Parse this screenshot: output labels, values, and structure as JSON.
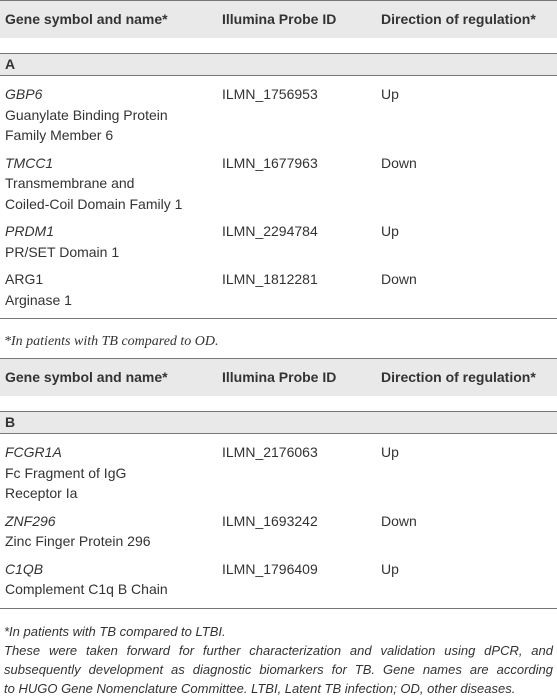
{
  "tables": [
    {
      "header": [
        "Gene symbol and name*",
        "Illumina Probe ID",
        "Direction of regulation*"
      ],
      "section": "A",
      "rows": [
        {
          "symbol": "GBP6",
          "symbol_italic": true,
          "name": [
            "Guanylate Binding Protein",
            "Family Member 6"
          ],
          "probe": "ILMN_1756953",
          "direction": "Up"
        },
        {
          "symbol": "TMCC1",
          "symbol_italic": true,
          "name": [
            "Transmembrane and",
            "Coiled-Coil Domain Family 1"
          ],
          "probe": "ILMN_1677963",
          "direction": "Down"
        },
        {
          "symbol": "PRDM1",
          "symbol_italic": true,
          "name": [
            "PR/SET Domain 1"
          ],
          "probe": "ILMN_2294784",
          "direction": "Up"
        },
        {
          "symbol": "ARG1",
          "symbol_italic": false,
          "name": [
            "Arginase 1"
          ],
          "probe": "ILMN_1812281",
          "direction": "Down"
        }
      ],
      "footnote": [
        "*In patients with TB compared to OD."
      ]
    },
    {
      "header": [
        "Gene symbol and name*",
        "Illumina Probe ID",
        "Direction of regulation*"
      ],
      "section": "B",
      "rows": [
        {
          "symbol": "FCGR1A",
          "symbol_italic": true,
          "name": [
            "Fc Fragment of IgG",
            "Receptor Ia"
          ],
          "probe": "ILMN_2176063",
          "direction": "Up"
        },
        {
          "symbol": "ZNF296",
          "symbol_italic": true,
          "name": [
            "Zinc Finger Protein 296"
          ],
          "probe": "ILMN_1693242",
          "direction": "Down"
        },
        {
          "symbol": "C1QB",
          "symbol_italic": true,
          "name": [
            "Complement C1q B Chain"
          ],
          "probe": "ILMN_1796409",
          "direction": "Up"
        }
      ],
      "footnote": [
        "*In patients with TB compared to LTBI.",
        "These were taken forward for further characterization and validation using dPCR, and",
        "subsequently development as diagnostic biomarkers for TB. Gene names are according",
        "to HUGO Gene Nomenclature Committee. LTBI, Latent TB infection; OD, other diseases."
      ]
    }
  ]
}
